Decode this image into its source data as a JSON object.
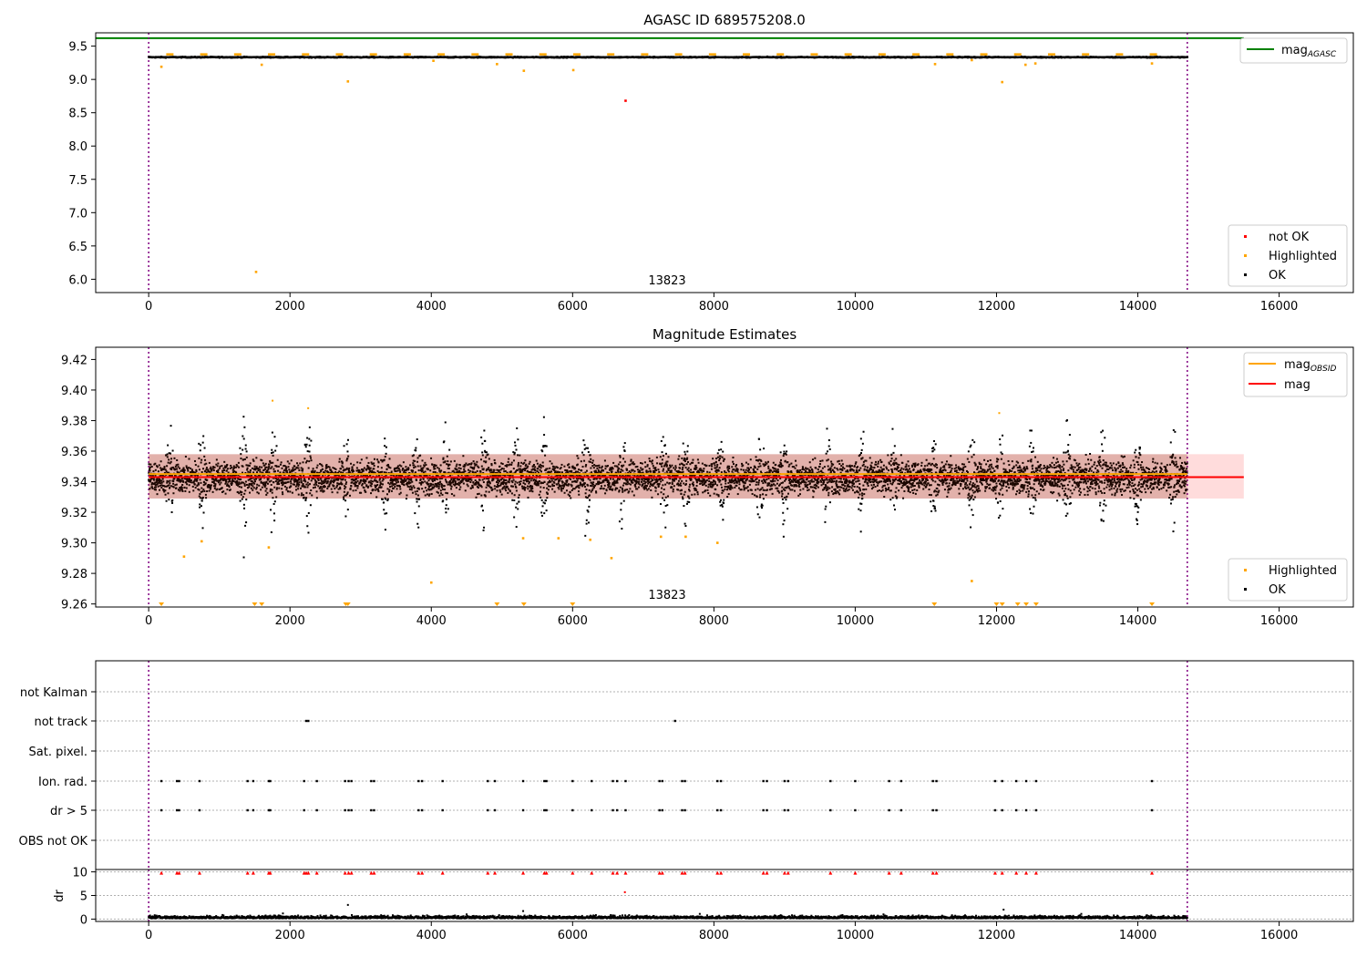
{
  "colors": {
    "ok": "#000000",
    "highlighted": "#ffa500",
    "not_ok": "#ff0000",
    "mag_agasc": "#008000",
    "mag_obsid": "#ffa500",
    "mag": "#ff0000",
    "band": "#ffc0c0",
    "obs_marker": "#800080"
  },
  "chart_data": [
    {
      "type": "scatter",
      "title": "AGASC ID 689575208.0",
      "xlim": [
        -750,
        17050
      ],
      "ylim": [
        5.8,
        9.7
      ],
      "xticks": [
        "0",
        "2000",
        "4000",
        "6000",
        "8000",
        "10000",
        "12000",
        "14000",
        "16000"
      ],
      "yticks": [
        "6.0",
        "6.5",
        "7.0",
        "7.5",
        "8.0",
        "8.5",
        "9.0",
        "9.5"
      ],
      "obs_lines": [
        0,
        14700
      ],
      "obsid_label": "13823",
      "lines": [
        {
          "name": "mag_AGASC",
          "legend_main": "mag",
          "legend_sub": "AGASC",
          "y": 9.62,
          "x": [
            -750,
            15500
          ],
          "color": "#008000"
        }
      ],
      "series_legend": [
        "not OK",
        "Highlighted",
        "OK"
      ],
      "ok_band": [
        9.31,
        9.36
      ],
      "ok_x_range": [
        0,
        14700
      ],
      "highlighted_points": [
        [
          180,
          9.19
        ],
        [
          1600,
          9.22
        ],
        [
          2820,
          8.97
        ],
        [
          4030,
          9.28
        ],
        [
          4930,
          9.23
        ],
        [
          5310,
          9.13
        ],
        [
          6010,
          9.14
        ],
        [
          11130,
          9.23
        ],
        [
          11650,
          9.29
        ],
        [
          12080,
          8.96
        ],
        [
          12410,
          9.22
        ],
        [
          12550,
          9.24
        ],
        [
          14200,
          9.24
        ],
        [
          1520,
          6.11
        ]
      ],
      "not_ok_points": [
        [
          6750,
          8.68
        ]
      ]
    },
    {
      "type": "scatter",
      "title": "Magnitude Estimates",
      "xlim": [
        -750,
        17050
      ],
      "ylim": [
        9.258,
        9.428
      ],
      "xticks": [
        "0",
        "2000",
        "4000",
        "6000",
        "8000",
        "10000",
        "12000",
        "14000",
        "16000"
      ],
      "yticks": [
        "9.26",
        "9.28",
        "9.30",
        "9.32",
        "9.34",
        "9.36",
        "9.38",
        "9.40",
        "9.42"
      ],
      "obs_lines": [
        0,
        14700
      ],
      "obsid_label": "13823",
      "lines": [
        {
          "name": "mag_OBSID",
          "legend_main": "mag",
          "legend_sub": "OBSID",
          "y": 9.345,
          "x": [
            0,
            14700
          ],
          "color": "#ffa500"
        },
        {
          "name": "mag",
          "legend_main": "mag",
          "legend_sub": "",
          "y": 9.343,
          "x": [
            0,
            15500
          ],
          "color": "#ff0000"
        }
      ],
      "band": [
        9.329,
        9.358
      ],
      "series_legend": [
        "Highlighted",
        "OK"
      ],
      "ok_core": [
        9.322,
        9.364
      ],
      "spike_centers": [
        300,
        750,
        1350,
        1750,
        2250,
        2800,
        3350,
        3800,
        4200,
        4750,
        5200,
        5600,
        6200,
        6700,
        7300,
        7600,
        8100,
        8650,
        9000,
        9600,
        10100,
        10550,
        11100,
        11650,
        12050,
        12500,
        13000,
        13500,
        14000,
        14500
      ],
      "highlighted_points": [
        [
          500,
          9.291
        ],
        [
          750,
          9.301
        ],
        [
          1700,
          9.297
        ],
        [
          4000,
          9.274
        ],
        [
          5300,
          9.303
        ],
        [
          5800,
          9.303
        ],
        [
          6250,
          9.302
        ],
        [
          6550,
          9.29
        ],
        [
          7250,
          9.304
        ],
        [
          7600,
          9.304
        ],
        [
          8050,
          9.3
        ],
        [
          11650,
          9.275
        ]
      ],
      "clipped_x": [
        180,
        1500,
        1600,
        2790,
        2820,
        4930,
        5310,
        6000,
        11120,
        12000,
        12080,
        12300,
        12420,
        12560,
        14200
      ]
    },
    {
      "type": "scatter",
      "categories": [
        "not Kalman",
        "not track",
        "Sat. pixel.",
        "Ion. rad.",
        "dr > 5",
        "OBS not OK"
      ],
      "xlim": [
        -750,
        17050
      ],
      "obs_lines": [
        0,
        14700
      ],
      "flag_x": [
        180,
        400,
        430,
        720,
        1400,
        1480,
        1700,
        1720,
        2200,
        2380,
        2780,
        2830,
        2870,
        3150,
        3190,
        3820,
        3870,
        4160,
        4800,
        4900,
        5300,
        5600,
        5630,
        6000,
        6270,
        6570,
        6630,
        6750,
        7230,
        7270,
        7550,
        7590,
        8050,
        8100,
        8700,
        8750,
        9000,
        9050,
        9650,
        10000,
        10480,
        10650,
        11100,
        11150,
        11980,
        12080,
        12280,
        12420,
        12560,
        14200
      ],
      "not_track_x": [
        2230,
        2260,
        7450
      ]
    },
    {
      "type": "scatter",
      "ylabel": "dr",
      "xlim": [
        -750,
        17050
      ],
      "ylim": [
        -0.5,
        10.5
      ],
      "xticks": [
        "0",
        "2000",
        "4000",
        "6000",
        "8000",
        "10000",
        "12000",
        "14000",
        "16000"
      ],
      "yticks": [
        "0",
        "5",
        "10"
      ],
      "obs_lines": [
        0,
        14700
      ],
      "dr_ok_band": [
        0,
        0.9
      ],
      "dr_points": [
        [
          2820,
          3.0
        ],
        [
          5300,
          1.7
        ],
        [
          6740,
          5.7
        ],
        [
          12100,
          2.0
        ],
        [
          1900,
          1.2
        ],
        [
          4500,
          1.0
        ],
        [
          7800,
          1.1
        ],
        [
          10400,
          1.0
        ],
        [
          13200,
          1.1
        ]
      ],
      "dr_capped_x": [
        180,
        400,
        430,
        720,
        1400,
        1480,
        1700,
        1720,
        2200,
        2230,
        2260,
        2380,
        2780,
        2830,
        2870,
        3150,
        3190,
        3820,
        3870,
        4160,
        4800,
        4900,
        5300,
        5600,
        5630,
        6000,
        6270,
        6570,
        6630,
        6750,
        7230,
        7270,
        7550,
        7590,
        8050,
        8100,
        8700,
        8750,
        9000,
        9050,
        9650,
        10000,
        10480,
        10650,
        11100,
        11150,
        11980,
        12080,
        12280,
        12420,
        12560,
        14200
      ]
    }
  ]
}
